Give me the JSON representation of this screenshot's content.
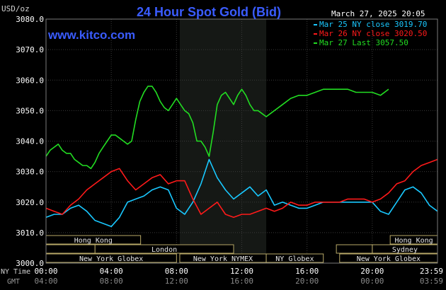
{
  "header": {
    "title": "24 Hour Spot Gold (Bid)",
    "site": "www.kitco.com",
    "unit_label": "USD/oz",
    "timestamp": "March 27, 2025 20:05"
  },
  "legend": [
    {
      "label": "Mar 25 NY close 3019.70",
      "color": "#19c8ff"
    },
    {
      "label": "Mar 26 NY close 3020.50",
      "color": "#ff1a1a"
    },
    {
      "label": "Mar 27 Last 3057.50",
      "color": "#22dd22"
    }
  ],
  "axis": {
    "y_ticks": [
      "3080.0",
      "3070.0",
      "3060.0",
      "3050.0",
      "3040.0",
      "3030.0",
      "3020.0",
      "3010.0",
      "3000.0"
    ],
    "x_ticks_ny": [
      "00:00",
      "04:00",
      "08:00",
      "12:00",
      "16:00",
      "20:00",
      "23:59"
    ],
    "x_ticks_gmt": [
      "04:00",
      "08:00",
      "12:00",
      "16:00",
      "20:00",
      "00:00",
      "03:59"
    ],
    "row_label_ny": "NY Time",
    "row_label_gmt": "GMT"
  },
  "sessions": [
    {
      "label": "Hong Kong",
      "row": 0,
      "start": 0,
      "end": 5.8
    },
    {
      "label": "Hong Kong",
      "row": 0,
      "start": 21.1,
      "end": 24
    },
    {
      "label": "London",
      "row": 1,
      "start": 3.0,
      "end": 11.5
    },
    {
      "label": "Sydney",
      "row": 1,
      "start": 20.0,
      "end": 24
    },
    {
      "label": "New York Globex",
      "row": 2,
      "start": 0,
      "end": 8.0
    },
    {
      "label": "New York NYMEX",
      "row": 2,
      "start": 8.2,
      "end": 13.5
    },
    {
      "label": "NY Globex",
      "row": 2,
      "start": 13.5,
      "end": 17.0
    },
    {
      "label": "New York Globex",
      "row": 2,
      "start": 18.0,
      "end": 24
    }
  ],
  "chart_data": {
    "type": "line",
    "title": "24 Hour Spot Gold (Bid)",
    "ylabel": "USD/oz",
    "ylim": [
      3000,
      3080
    ],
    "xlim": [
      0,
      24
    ],
    "grid": true,
    "highlight_range": [
      8.2,
      13.5
    ],
    "series": [
      {
        "name": "Mar 25 NY close 3019.70",
        "color": "#19c8ff",
        "x": [
          0,
          0.5,
          1,
          1.5,
          2,
          2.5,
          3,
          3.5,
          4,
          4.5,
          5,
          5.5,
          6,
          6.5,
          7,
          7.5,
          8,
          8.5,
          9,
          9.5,
          10,
          10.5,
          11,
          11.5,
          12,
          12.5,
          13,
          13.5,
          14,
          14.5,
          15,
          15.5,
          16,
          16.5,
          17,
          17.5,
          18,
          18.5,
          19,
          19.5,
          20,
          20.5,
          21,
          21.5,
          22,
          22.5,
          23,
          23.5,
          24
        ],
        "values": [
          3015,
          3016,
          3016,
          3018,
          3019,
          3017,
          3014,
          3013,
          3012,
          3015,
          3020,
          3021,
          3022,
          3024,
          3025,
          3024,
          3018,
          3016,
          3020,
          3026,
          3034,
          3028,
          3024,
          3021,
          3023,
          3025,
          3022,
          3024,
          3019,
          3020,
          3019,
          3018,
          3018,
          3019,
          3020,
          3020,
          3020,
          3020,
          3020,
          3020,
          3020,
          3017,
          3016,
          3020,
          3024,
          3025,
          3023,
          3019,
          3017
        ]
      },
      {
        "name": "Mar 26 NY close 3020.50",
        "color": "#ff1a1a",
        "x": [
          0,
          0.5,
          1,
          1.5,
          2,
          2.5,
          3,
          3.5,
          4,
          4.5,
          5,
          5.5,
          6,
          6.5,
          7,
          7.5,
          8,
          8.5,
          9,
          9.5,
          10,
          10.5,
          11,
          11.5,
          12,
          12.5,
          13,
          13.5,
          14,
          14.5,
          15,
          15.5,
          16,
          16.5,
          17,
          17.5,
          18,
          18.5,
          19,
          19.5,
          20,
          20.5,
          21,
          21.5,
          22,
          22.5,
          23,
          23.5,
          24
        ],
        "values": [
          3018,
          3017,
          3016,
          3019,
          3021,
          3024,
          3026,
          3028,
          3030,
          3031,
          3027,
          3024,
          3026,
          3028,
          3029,
          3026,
          3027,
          3027,
          3021,
          3016,
          3018,
          3020,
          3016,
          3015,
          3016,
          3016,
          3017,
          3018,
          3017,
          3018,
          3020,
          3019,
          3019,
          3020,
          3020,
          3020,
          3020,
          3021,
          3021,
          3021,
          3020,
          3021,
          3023,
          3026,
          3027,
          3030,
          3032,
          3033,
          3034
        ]
      },
      {
        "name": "Mar 27 Last 3057.50",
        "color": "#22dd22",
        "x": [
          0,
          0.25,
          0.5,
          0.75,
          1,
          1.25,
          1.5,
          1.75,
          2,
          2.25,
          2.5,
          2.75,
          3,
          3.25,
          3.5,
          3.75,
          4,
          4.25,
          4.5,
          4.75,
          5,
          5.25,
          5.5,
          5.75,
          6,
          6.25,
          6.5,
          6.75,
          7,
          7.25,
          7.5,
          7.75,
          8,
          8.25,
          8.5,
          8.75,
          9,
          9.25,
          9.5,
          9.75,
          10,
          10.25,
          10.5,
          10.75,
          11,
          11.25,
          11.5,
          11.75,
          12,
          12.25,
          12.5,
          12.75,
          13,
          13.25,
          13.5,
          13.75,
          14,
          14.5,
          15,
          15.5,
          16,
          16.5,
          17,
          17.5,
          18,
          18.5,
          19,
          19.5,
          20,
          20.5,
          21
        ],
        "values": [
          3035,
          3037,
          3038,
          3039,
          3037,
          3036,
          3036,
          3034,
          3033,
          3032,
          3032,
          3031,
          3033,
          3036,
          3038,
          3040,
          3042,
          3042,
          3041,
          3040,
          3039,
          3040,
          3047,
          3053,
          3056,
          3058,
          3058,
          3056,
          3053,
          3051,
          3050,
          3052,
          3054,
          3052,
          3050,
          3049,
          3046,
          3040,
          3040,
          3038,
          3035,
          3043,
          3052,
          3055,
          3056,
          3054,
          3052,
          3055,
          3057,
          3055,
          3052,
          3050,
          3050,
          3049,
          3048,
          3049,
          3050,
          3052,
          3054,
          3055,
          3055,
          3056,
          3057,
          3057,
          3057,
          3057,
          3056,
          3056,
          3056,
          3055,
          3057
        ]
      }
    ]
  }
}
